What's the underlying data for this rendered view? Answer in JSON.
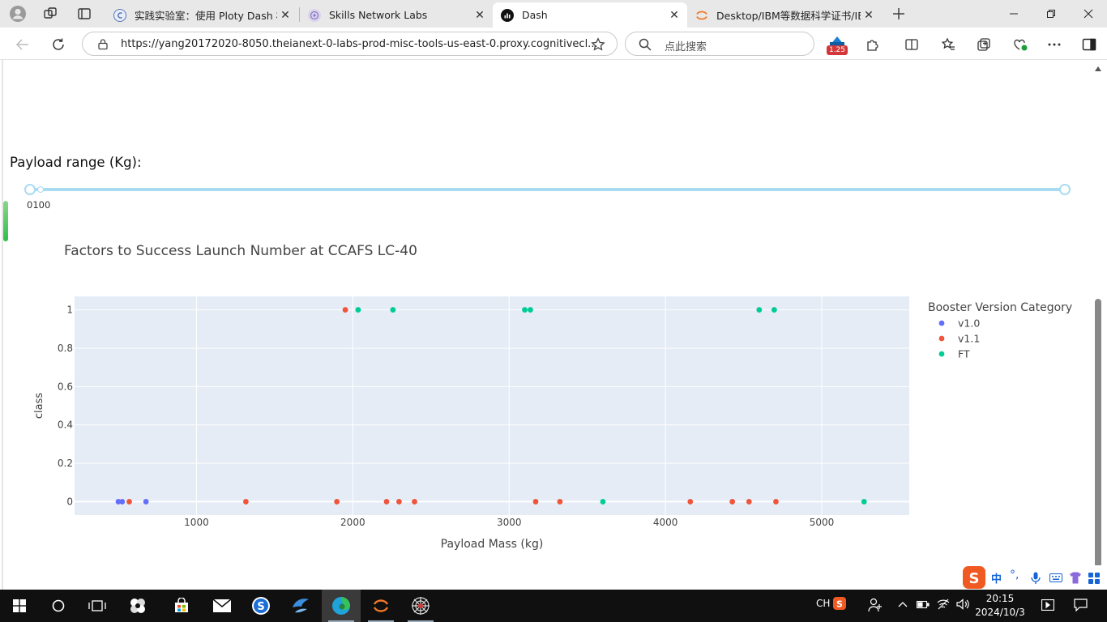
{
  "browser": {
    "tabs": [
      {
        "title": "实践实验室：使用 Ploty Dash 构建",
        "favicon": "lab-icon",
        "active": false
      },
      {
        "title": "Skills Network Labs",
        "favicon": "skills-icon",
        "active": false
      },
      {
        "title": "Dash",
        "favicon": "dash-icon",
        "active": true
      },
      {
        "title": "Desktop/IBM等数据科学证书/IBM",
        "favicon": "jupyter-icon",
        "active": false
      }
    ],
    "url": "https://yang20172020-8050.theianext-0-labs-prod-misc-tools-us-east-0.proxy.cognitivecl...",
    "search_placeholder": "点此搜索",
    "zoom_badge": "1.25"
  },
  "page": {
    "payload_label": "Payload range (Kg):",
    "slider_min_label": "0100",
    "slider": {
      "min": 0,
      "max": 10000,
      "selected": [
        0,
        10000
      ]
    }
  },
  "chart_data": {
    "type": "scatter",
    "title": "Factors to Success Launch Number at CCAFS LC-40",
    "xlabel": "Payload Mass (kg)",
    "ylabel": "class",
    "xlim": [
      220,
      5560
    ],
    "ylim": [
      -0.07,
      1.07
    ],
    "xticks": [
      1000,
      2000,
      3000,
      4000,
      5000
    ],
    "yticks": [
      0,
      0.2,
      0.4,
      0.6,
      0.8,
      1
    ],
    "ytick_labels": [
      "0",
      "0.2",
      "0.4",
      "0.6",
      "0.8",
      "1"
    ],
    "legend_title": "Booster Version Category",
    "legend_position": "top-right",
    "grid": true,
    "series": [
      {
        "name": "v1.0",
        "color": "#636efa",
        "points": [
          [
            500,
            0
          ],
          [
            525,
            0
          ],
          [
            677,
            0
          ]
        ]
      },
      {
        "name": "v1.1",
        "color": "#ef553b",
        "points": [
          [
            570,
            0
          ],
          [
            1316,
            0
          ],
          [
            1898,
            0
          ],
          [
            1952,
            1
          ],
          [
            2216,
            0
          ],
          [
            2296,
            0
          ],
          [
            2395,
            0
          ],
          [
            3170,
            0
          ],
          [
            3325,
            0
          ],
          [
            4159,
            0
          ],
          [
            4428,
            0
          ],
          [
            4535,
            0
          ],
          [
            4707,
            0
          ]
        ]
      },
      {
        "name": "FT",
        "color": "#00cc96",
        "points": [
          [
            2034,
            1
          ],
          [
            2257,
            1
          ],
          [
            3100,
            1
          ],
          [
            3136,
            1
          ],
          [
            3600,
            0
          ],
          [
            4600,
            1
          ],
          [
            4696,
            1
          ],
          [
            5271,
            0
          ]
        ]
      }
    ]
  },
  "taskbar": {
    "time": "20:15",
    "date": "2024/10/3",
    "ime_lang": "CH",
    "ime_mode": "中"
  }
}
